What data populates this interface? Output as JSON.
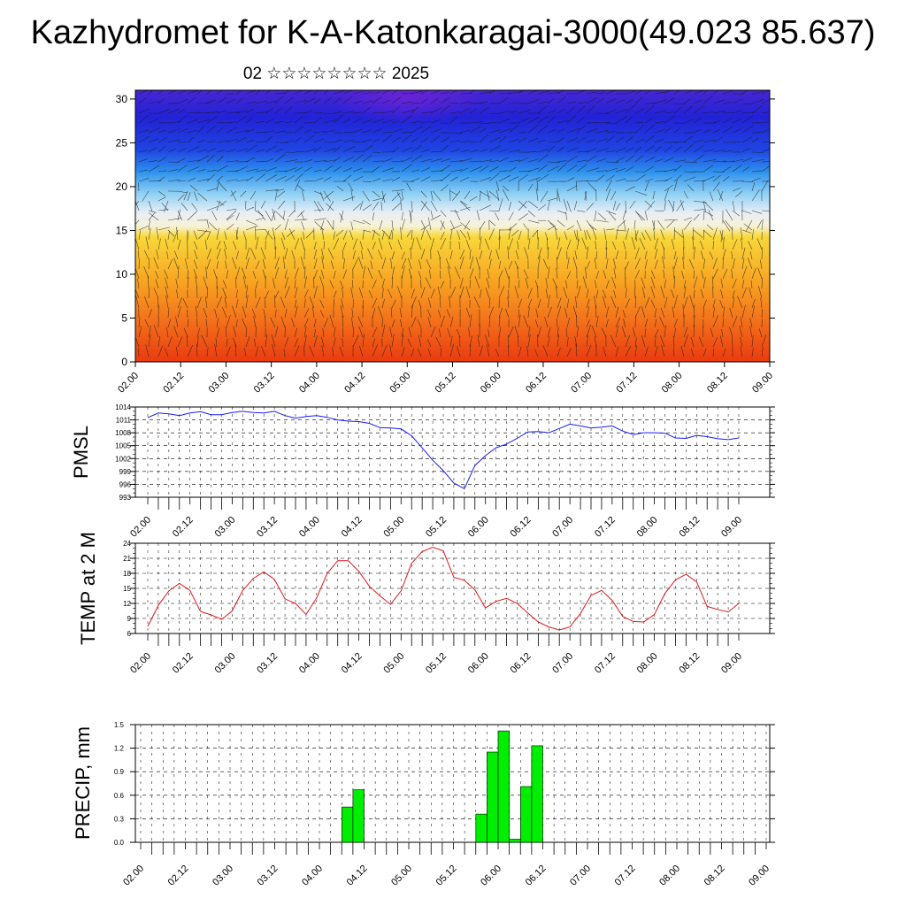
{
  "title": "Kazhydromet for K-A-Katonkaragai-3000(49.023 85.637)",
  "subtitle": "02 ☆☆☆☆☆☆☆☆ 2025",
  "colors": {
    "pmsl_line": "#1a1aff",
    "temp_line": "#e01818",
    "precip_bar": "#00ee00",
    "grid": "#000000"
  },
  "chart_data": [
    {
      "id": "cross-section",
      "type": "heatmap",
      "title": "",
      "xlabel": "",
      "ylabel": "",
      "x_ticks": [
        "02.00",
        "02.12",
        "03.00",
        "03.12",
        "04.00",
        "04.12",
        "05.00",
        "05.12",
        "06.00",
        "06.12",
        "07.00",
        "07.12",
        "08.00",
        "08.12",
        "09.00"
      ],
      "y_ticks": [
        0,
        5,
        10,
        15,
        20,
        25,
        30
      ],
      "ylim": [
        0,
        31
      ],
      "color_scale": [
        "#7b1fd0",
        "#2a24e0",
        "#2f7fe8",
        "#9fd4f4",
        "#f4f4f4",
        "#f7e040",
        "#f8b020",
        "#f06010",
        "#e81010"
      ],
      "overlay": "wind vectors"
    },
    {
      "id": "pmsl",
      "type": "line",
      "ylabel": "PMSL",
      "x_ticks": [
        "02.00",
        "02.12",
        "03.00",
        "03.12",
        "04.00",
        "04.12",
        "05.00",
        "05.12",
        "06.00",
        "06.12",
        "07.00",
        "07.12",
        "08.00",
        "08.12",
        "09.00"
      ],
      "y_ticks": [
        993,
        996,
        999,
        1002,
        1005,
        1008,
        1011,
        1014
      ],
      "ylim": [
        993,
        1014
      ],
      "x": [
        0,
        0.125,
        0.25,
        0.375,
        0.5,
        0.625,
        0.75,
        0.875,
        1,
        1.125,
        1.25,
        1.375,
        1.5,
        1.625,
        1.75,
        1.875,
        2,
        2.125,
        2.25,
        2.375,
        2.5,
        2.625,
        2.75,
        2.875,
        3,
        3.125,
        3.25,
        3.375,
        3.5,
        3.625,
        3.75,
        3.875,
        4,
        4.125,
        4.25,
        4.375,
        4.5,
        4.625,
        4.75,
        4.875,
        5,
        5.125,
        5.25,
        5.375,
        5.5,
        5.625,
        5.75,
        5.875,
        6,
        6.125,
        6.25,
        6.375,
        6.5,
        6.625,
        6.75,
        6.875,
        7
      ],
      "values": [
        1011.5,
        1012.6,
        1012.4,
        1012.0,
        1012.6,
        1012.9,
        1012.2,
        1012.2,
        1012.7,
        1013.0,
        1012.7,
        1012.6,
        1013.0,
        1012.0,
        1011.4,
        1011.8,
        1012.0,
        1011.6,
        1011.0,
        1010.7,
        1010.6,
        1010.2,
        1009.2,
        1009.1,
        1008.9,
        1007.3,
        1004.5,
        1001.6,
        999.2,
        996.3,
        995.0,
        1000.4,
        1002.7,
        1004.5,
        1005.4,
        1006.7,
        1008.2,
        1008.3,
        1008.0,
        1009.0,
        1010.0,
        1009.6,
        1009.1,
        1009.3,
        1009.6,
        1008.4,
        1007.6,
        1008.0,
        1008.0,
        1007.9,
        1006.8,
        1006.7,
        1007.4,
        1007.1,
        1006.6,
        1006.4,
        1006.8
      ]
    },
    {
      "id": "temp",
      "type": "line",
      "ylabel": "TEMP at 2 M",
      "x_ticks": [
        "02.00",
        "02.12",
        "03.00",
        "03.12",
        "04.00",
        "04.12",
        "05.00",
        "05.12",
        "06.00",
        "06.12",
        "07.00",
        "07.12",
        "08.00",
        "08.12",
        "09.00"
      ],
      "y_ticks": [
        6,
        9,
        12,
        15,
        18,
        21,
        24
      ],
      "ylim": [
        6,
        24
      ],
      "x": [
        0,
        0.125,
        0.25,
        0.375,
        0.5,
        0.625,
        0.75,
        0.875,
        1,
        1.125,
        1.25,
        1.375,
        1.5,
        1.625,
        1.75,
        1.875,
        2,
        2.125,
        2.25,
        2.375,
        2.5,
        2.625,
        2.75,
        2.875,
        3,
        3.125,
        3.25,
        3.375,
        3.5,
        3.625,
        3.75,
        3.875,
        4,
        4.125,
        4.25,
        4.375,
        4.5,
        4.625,
        4.75,
        4.875,
        5,
        5.125,
        5.25,
        5.375,
        5.5,
        5.625,
        5.75,
        5.875,
        6,
        6.125,
        6.25,
        6.375,
        6.5,
        6.625,
        6.75,
        6.875,
        7
      ],
      "values": [
        7.4,
        11.6,
        14.5,
        16.0,
        14.6,
        10.4,
        9.7,
        8.8,
        10.5,
        14.6,
        17.0,
        18.3,
        16.8,
        12.9,
        12.0,
        9.8,
        13.1,
        18.0,
        20.5,
        20.5,
        18.4,
        15.4,
        13.5,
        11.8,
        14.5,
        20.0,
        22.3,
        23.2,
        22.5,
        17.2,
        16.6,
        14.7,
        11.1,
        12.4,
        13.0,
        12.0,
        10.1,
        8.3,
        7.3,
        6.7,
        7.3,
        10.0,
        13.6,
        14.6,
        12.6,
        9.4,
        8.4,
        8.3,
        9.8,
        14.0,
        16.7,
        17.8,
        16.3,
        11.4,
        10.8,
        10.3,
        12.0
      ]
    },
    {
      "id": "precip",
      "type": "bar",
      "ylabel": "PRECIP, mm",
      "x_ticks": [
        "02.00",
        "02.12",
        "03.00",
        "03.12",
        "04.00",
        "04.12",
        "05.00",
        "05.12",
        "06.00",
        "06.12",
        "07.00",
        "07.12",
        "08.00",
        "08.12",
        "09.00"
      ],
      "y_ticks": [
        "0.0",
        "0.3",
        "0.6",
        "0.9",
        "1.2",
        "1.5"
      ],
      "ylim": [
        0,
        1.5
      ],
      "x": [
        2.375,
        2.5,
        3.875,
        4.0,
        4.125,
        4.25,
        4.375,
        4.5,
        4.625
      ],
      "values": [
        0.45,
        0.67,
        0.36,
        1.15,
        1.42,
        0.04,
        0.71,
        1.23,
        0
      ]
    }
  ]
}
